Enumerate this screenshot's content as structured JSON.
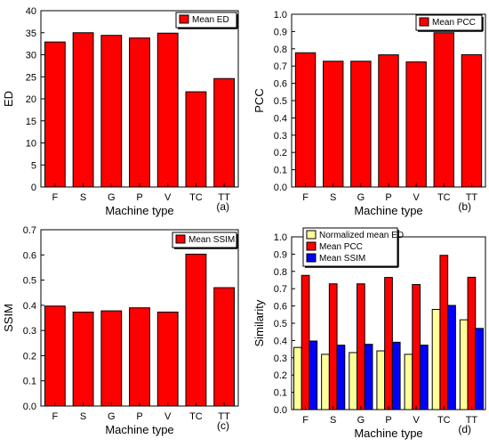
{
  "chart_data": [
    {
      "type": "bar",
      "panel_label": "(a)",
      "categories": [
        "F",
        "S",
        "G",
        "P",
        "V",
        "TC",
        "TT"
      ],
      "series": [
        {
          "name": "Mean ED",
          "values": [
            32.9,
            35.0,
            34.4,
            33.8,
            34.9,
            21.6,
            24.6
          ],
          "color": "#ff0000"
        }
      ],
      "xlabel": "Machine type",
      "ylabel": "ED",
      "ylim": [
        0,
        40
      ],
      "yticks": [
        0,
        5,
        10,
        15,
        20,
        25,
        30,
        35,
        40
      ],
      "ytick_labels": [
        "0",
        "5",
        "10",
        "15",
        "20",
        "25",
        "30",
        "35",
        "40"
      ],
      "legend": "top-right",
      "grid": false
    },
    {
      "type": "bar",
      "panel_label": "(b)",
      "categories": [
        "F",
        "S",
        "G",
        "P",
        "V",
        "TC",
        "TT"
      ],
      "series": [
        {
          "name": "Mean PCC",
          "values": [
            0.777,
            0.728,
            0.728,
            0.765,
            0.724,
            0.893,
            0.766
          ],
          "color": "#ff0000"
        }
      ],
      "xlabel": "Machine type",
      "ylabel": "PCC",
      "ylim": [
        0,
        1.0
      ],
      "yticks": [
        0,
        0.1,
        0.2,
        0.3,
        0.4,
        0.5,
        0.6,
        0.7,
        0.8,
        0.9,
        1.0
      ],
      "ytick_labels": [
        "0.0",
        "0.1",
        "0.2",
        "0.3",
        "0.4",
        "0.5",
        "0.6",
        "0.7",
        "0.8",
        "0.9",
        "1.0"
      ],
      "legend": "top-right",
      "grid": false
    },
    {
      "type": "bar",
      "panel_label": "(c)",
      "categories": [
        "F",
        "S",
        "G",
        "P",
        "V",
        "TC",
        "TT"
      ],
      "series": [
        {
          "name": "Mean SSIM",
          "values": [
            0.397,
            0.373,
            0.378,
            0.39,
            0.373,
            0.603,
            0.47
          ],
          "color": "#ff0000"
        }
      ],
      "xlabel": "Machine type",
      "ylabel": "SSIM",
      "ylim": [
        0,
        0.7
      ],
      "yticks": [
        0,
        0.1,
        0.2,
        0.3,
        0.4,
        0.5,
        0.6,
        0.7
      ],
      "ytick_labels": [
        "0.0",
        "0.1",
        "0.2",
        "0.3",
        "0.4",
        "0.5",
        "0.6",
        "0.7"
      ],
      "legend": "top-right",
      "grid": false
    },
    {
      "type": "bar",
      "panel_label": "(d)",
      "categories": [
        "F",
        "S",
        "G",
        "P",
        "V",
        "TC",
        "TT"
      ],
      "series": [
        {
          "name": "Normalized mean ED",
          "values": [
            0.36,
            0.32,
            0.33,
            0.34,
            0.32,
            0.58,
            0.52
          ],
          "color": "#ffff99"
        },
        {
          "name": "Mean PCC",
          "values": [
            0.777,
            0.728,
            0.728,
            0.765,
            0.724,
            0.893,
            0.766
          ],
          "color": "#ff0000"
        },
        {
          "name": "Mean SSIM",
          "values": [
            0.397,
            0.373,
            0.378,
            0.39,
            0.373,
            0.603,
            0.47
          ],
          "color": "#0000ff"
        }
      ],
      "xlabel": "Machine type",
      "ylabel": "Similarity",
      "ylim": [
        0,
        1.0
      ],
      "yticks": [
        0,
        0.1,
        0.2,
        0.3,
        0.4,
        0.5,
        0.6,
        0.7,
        0.8,
        0.9,
        1.0
      ],
      "ytick_labels": [
        "0.0",
        "0.1",
        "0.2",
        "0.3",
        "0.4",
        "0.5",
        "0.6",
        "0.7",
        "0.8",
        "0.9",
        "1.0"
      ],
      "legend": "top-left",
      "grid": false
    }
  ]
}
